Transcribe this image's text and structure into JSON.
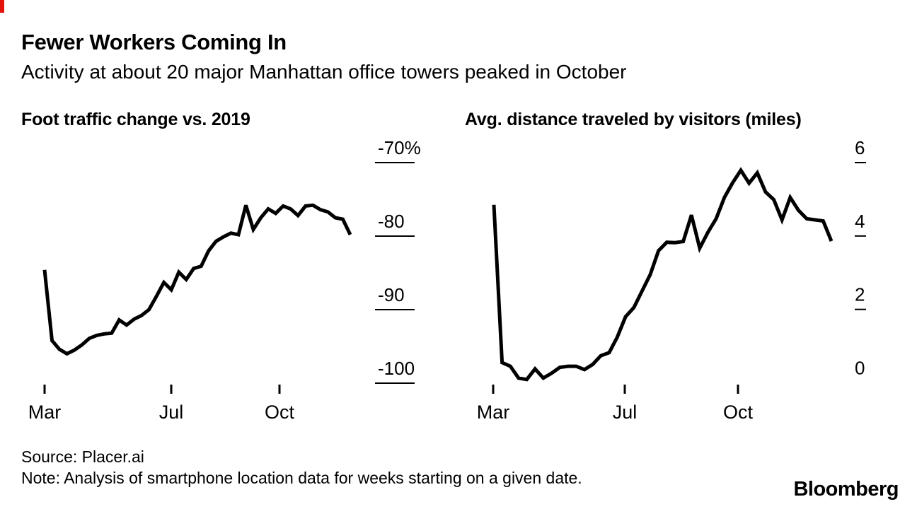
{
  "accent_color": "#e3120b",
  "text_color": "#000000",
  "line_color": "#000000",
  "header": {
    "title": "Fewer Workers Coming In",
    "subtitle": "Activity at about 20 major Manhattan office towers peaked in October"
  },
  "footer": {
    "source": "Source: Placer.ai",
    "note": "Note: Analysis of smartphone location data for weeks starting on a given date.",
    "brand": "Bloomberg"
  },
  "chart_data": [
    {
      "id": "foot-traffic",
      "type": "line",
      "title": "Foot traffic change vs. 2019",
      "unit": "%",
      "cadence": "weekly",
      "grid": false,
      "legend": "none",
      "ylim": [
        -100,
        -70
      ],
      "y_ticks": [
        {
          "label": "-70%",
          "value": -70,
          "tick": true
        },
        {
          "label": "-80",
          "value": -80,
          "tick": true
        },
        {
          "label": "-90",
          "value": -90,
          "tick": true
        },
        {
          "label": "-100",
          "value": -100,
          "tick": true
        }
      ],
      "x_tick_labels": [
        "Mar",
        "Jul",
        "Oct"
      ],
      "values": [
        -84.6,
        -94.2,
        -95.4,
        -96,
        -95.5,
        -94.8,
        -93.9,
        -93.5,
        -93.3,
        -93.2,
        -91.4,
        -92.1,
        -91.3,
        -90.8,
        -90,
        -88.2,
        -86.3,
        -87.3,
        -84.9,
        -85.9,
        -84.4,
        -84.1,
        -82,
        -80.7,
        -80.1,
        -79.6,
        -79.8,
        -75.8,
        -79.1,
        -77.5,
        -76.3,
        -76.9,
        -75.9,
        -76.3,
        -77.2,
        -75.9,
        -75.8,
        -76.4,
        -76.7,
        -77.5,
        -77.7,
        -79.8
      ]
    },
    {
      "id": "avg-distance",
      "type": "line",
      "title": "Avg. distance traveled by visitors (miles)",
      "unit": "miles",
      "cadence": "weekly",
      "grid": false,
      "legend": "none",
      "ylim": [
        0,
        6
      ],
      "y_ticks": [
        {
          "label": "6",
          "value": 6,
          "tick": true
        },
        {
          "label": "4",
          "value": 4,
          "tick": true
        },
        {
          "label": "2",
          "value": 2,
          "tick": true
        },
        {
          "label": "0",
          "value": 0,
          "tick": false
        }
      ],
      "x_tick_labels": [
        "Mar",
        "Jul",
        "Oct"
      ],
      "values": [
        4.85,
        0.55,
        0.45,
        0.13,
        0.09,
        0.38,
        0.13,
        0.26,
        0.42,
        0.45,
        0.45,
        0.36,
        0.5,
        0.74,
        0.82,
        1.25,
        1.8,
        2.05,
        2.5,
        2.95,
        3.6,
        3.83,
        3.82,
        3.85,
        4.57,
        3.67,
        4.1,
        4.47,
        5.05,
        5.45,
        5.79,
        5.44,
        5.72,
        5.2,
        4.99,
        4.44,
        5.05,
        4.7,
        4.47,
        4.44,
        4.41,
        3.86
      ]
    }
  ]
}
